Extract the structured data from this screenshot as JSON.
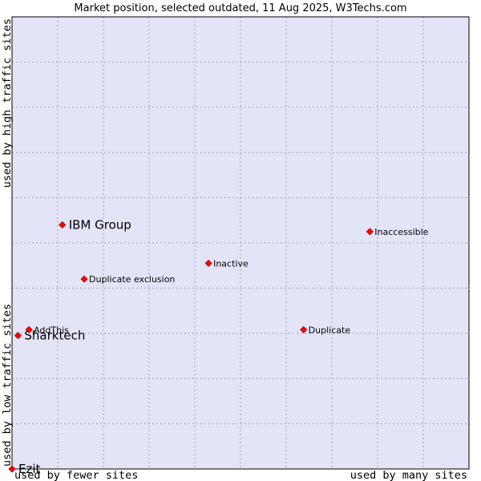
{
  "chart_data": {
    "type": "scatter",
    "title": "Market position, selected outdated, 11 Aug 2025, W3Techs.com",
    "xlabel_low": "used by fewer sites",
    "xlabel_high": "used by many sites",
    "ylabel_low": "used by low traffic sites",
    "ylabel_high": "used by high traffic sites",
    "grid": true,
    "xlim": [
      0,
      10
    ],
    "ylim": [
      0,
      10
    ],
    "points": [
      {
        "label": "IBM Group",
        "x": 1.1,
        "y": 5.4,
        "emphasis": true
      },
      {
        "label": "Sharktech",
        "x": 0.13,
        "y": 2.95,
        "emphasis": true
      },
      {
        "label": "Ezit",
        "x": 0.0,
        "y": 0.0,
        "emphasis": true
      },
      {
        "label": "Inaccessible",
        "x": 7.83,
        "y": 5.25,
        "emphasis": false
      },
      {
        "label": "Inactive",
        "x": 4.3,
        "y": 4.55,
        "emphasis": false
      },
      {
        "label": "Duplicate exclusion",
        "x": 1.58,
        "y": 4.2,
        "emphasis": false
      },
      {
        "label": "AddThis",
        "x": 0.37,
        "y": 3.08,
        "emphasis": false
      },
      {
        "label": "Duplicate",
        "x": 6.38,
        "y": 3.08,
        "emphasis": false
      }
    ]
  },
  "colors": {
    "plot_bg": "#e4e4f8",
    "grid": "#a0a0b8",
    "marker": "#ff0000",
    "marker_edge": "#b00000"
  }
}
